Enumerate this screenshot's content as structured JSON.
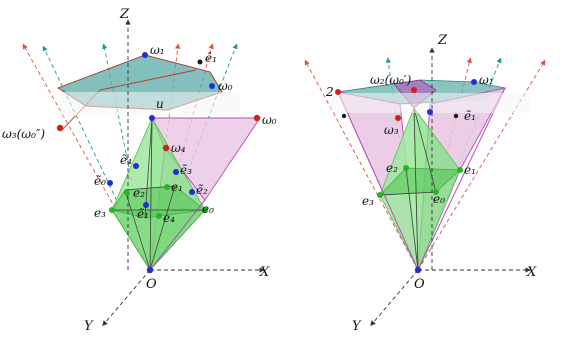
{
  "colors": {
    "teal_fill": "#5aa9a6",
    "pink_fill": "#e7c6e2",
    "green_fill": "#7fe07f",
    "dark_green_fill": "#3fae3f",
    "red_point": "#d21f1f",
    "blue_point": "#1f2fd1",
    "green_point": "#22b822",
    "magenta_edge": "#b84bb8"
  },
  "left_figure": {
    "axes": {
      "z": "Z",
      "x": "X",
      "y": "Y",
      "origin": "O"
    },
    "labels": {
      "omega1": "ω₁",
      "omega0": "ω₀",
      "omega0_right": "ω₀",
      "omega3": "ω₃(ω₀″)",
      "omega4": "ω₄",
      "e1_hat": "ê₁",
      "u": "u",
      "e4_tilde": "ẽ₄",
      "e3_tilde": "ẽ₃",
      "e0_tilde": "ẽ₀",
      "e2_tilde": "ẽ₂",
      "e1": "e₁",
      "e2": "e₂",
      "e3": "e₃",
      "e0": "e₀",
      "e4": "e₄",
      "e1_tilde": "ẽ₁"
    }
  },
  "right_figure": {
    "axes": {
      "z": "Z",
      "x": "X",
      "y": "Y",
      "origin": "O"
    },
    "labels": {
      "omega1": "ω₁",
      "omega2": "ω₂(ω₀′)",
      "omega3": "ω₃",
      "e1_tilde": "ẽ₁",
      "e2": "e₂",
      "e1": "e₁",
      "e0": "e₀",
      "e3": "e₃",
      "two": "2"
    }
  }
}
